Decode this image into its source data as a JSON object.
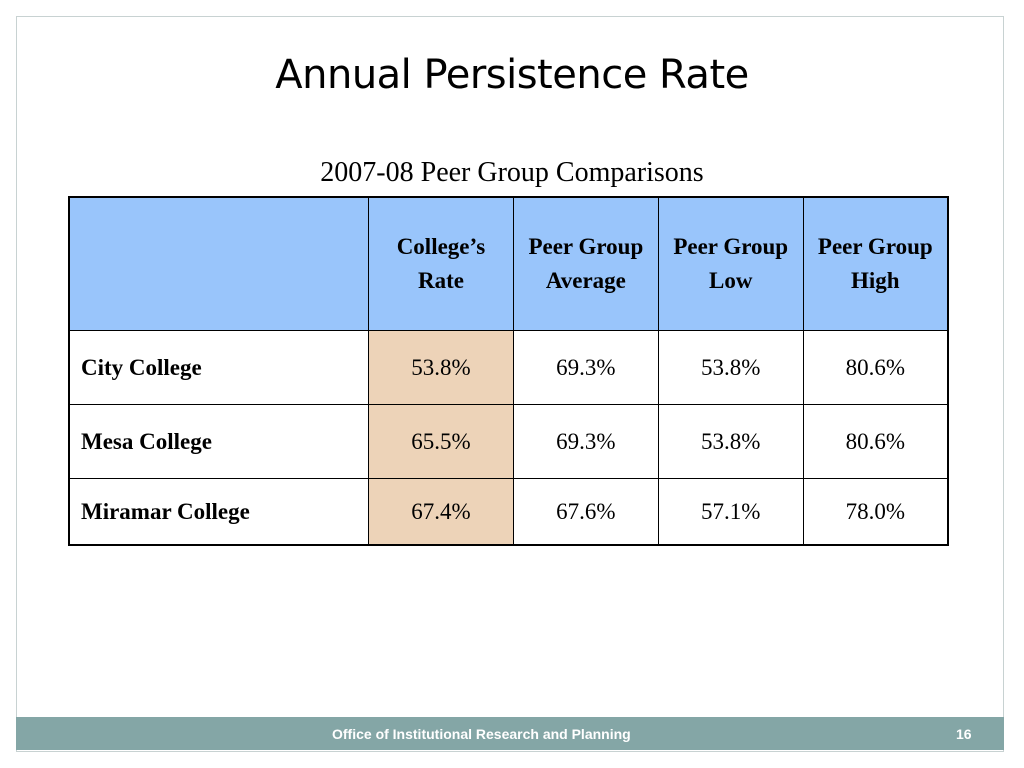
{
  "slide": {
    "title": "Annual Persistence Rate",
    "subtitle": "2007-08 Peer Group Comparisons"
  },
  "table": {
    "header": {
      "col0": "",
      "col1": "College’s Rate",
      "col2": "Peer Group Average",
      "col3": "Peer Group Low",
      "col4": "Peer Group High"
    },
    "rows": [
      {
        "college": "City College",
        "college_rate": "53.8%",
        "peer_avg": "69.3%",
        "peer_low": "53.8%",
        "peer_high": "80.6%"
      },
      {
        "college": "Mesa College",
        "college_rate": "65.5%",
        "peer_avg": "69.3%",
        "peer_low": "53.8%",
        "peer_high": "80.6%"
      },
      {
        "college": "Miramar College",
        "college_rate": "67.4%",
        "peer_avg": "67.6%",
        "peer_low": "57.1%",
        "peer_high": "78.0%"
      }
    ]
  },
  "footer": {
    "text": "Office of Institutional Research and Planning",
    "page_number": "16"
  },
  "colors": {
    "header_bg": "#99c5fb",
    "college_rate_bg": "#edd3b8",
    "footer_bg": "#84a6a6",
    "footer_text": "#ffffff"
  }
}
